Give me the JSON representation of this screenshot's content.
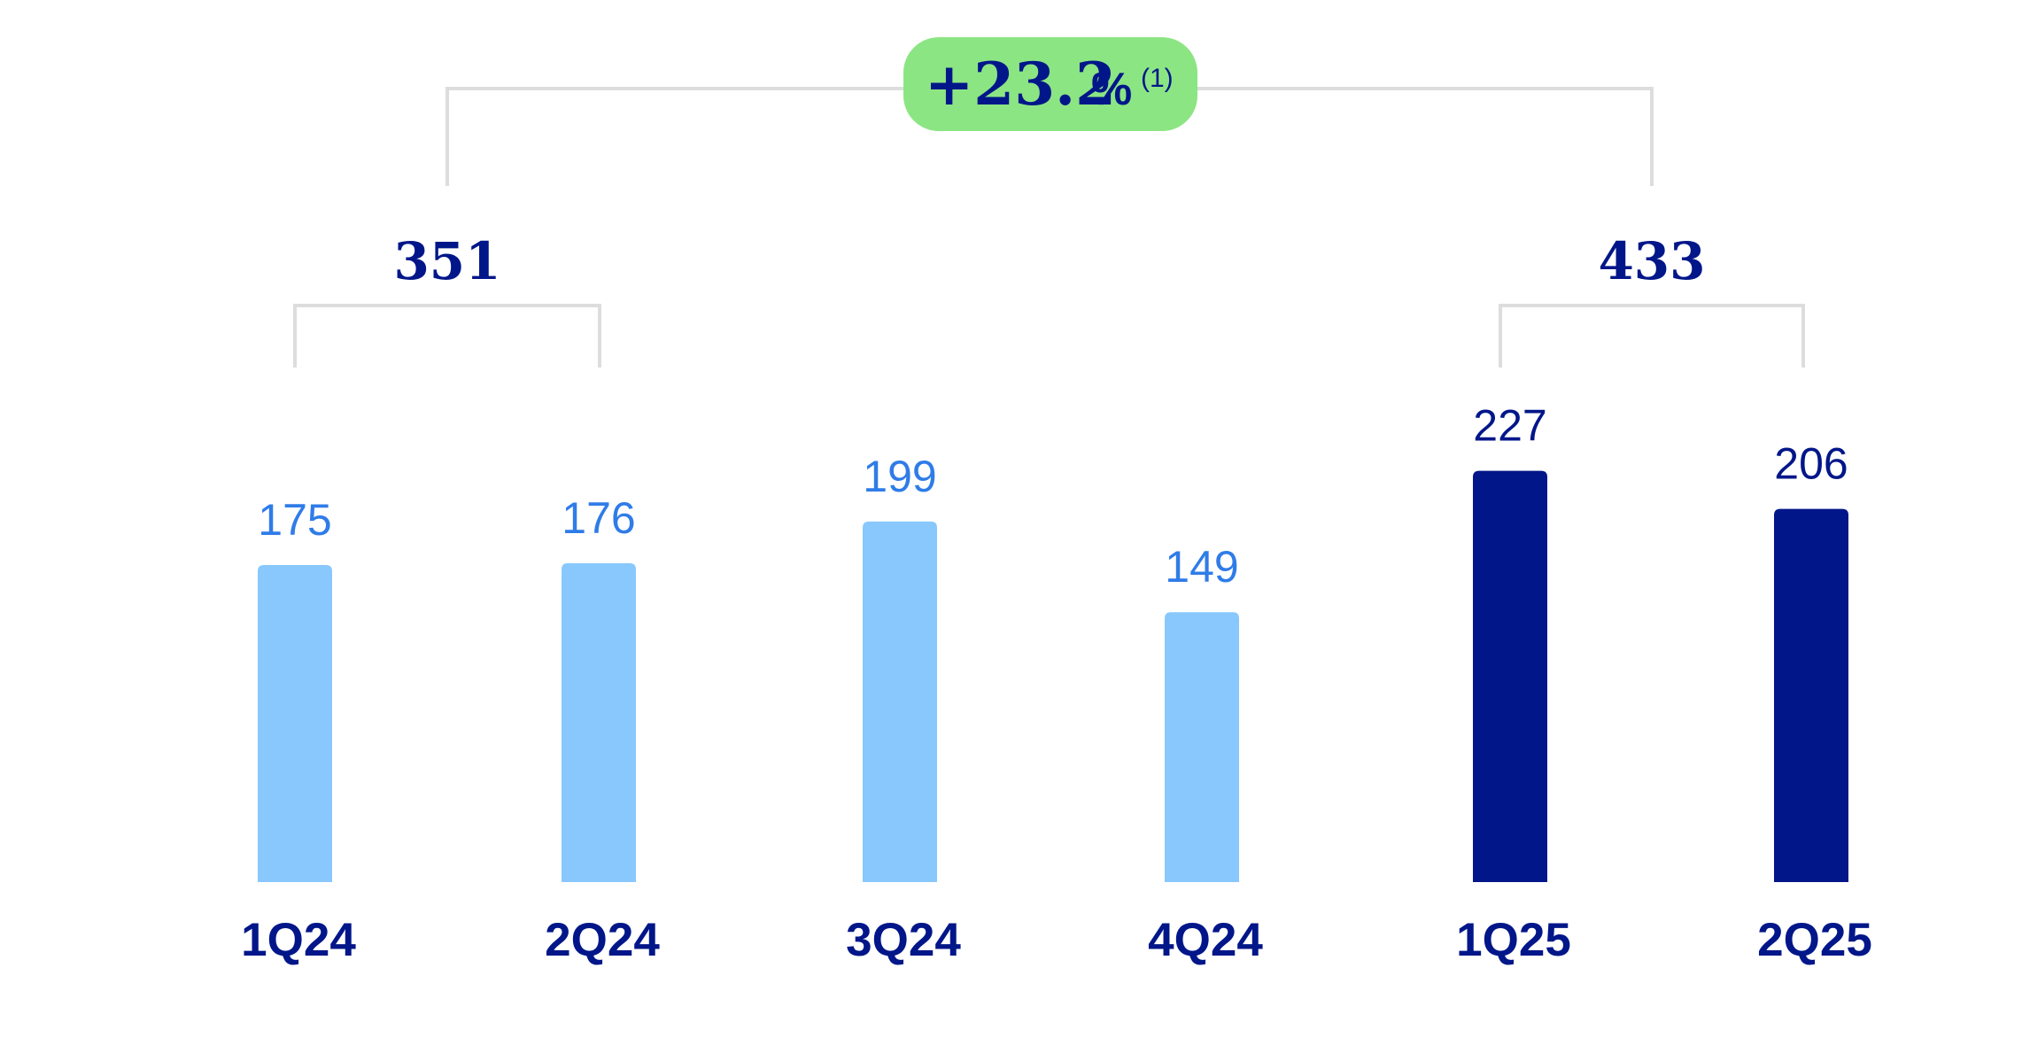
{
  "chart_data": {
    "type": "bar",
    "categories": [
      "1Q24",
      "2Q24",
      "3Q24",
      "4Q24",
      "1Q25",
      "2Q25"
    ],
    "values": [
      175,
      176,
      199,
      149,
      227,
      206
    ],
    "value_labels": [
      "175",
      "176",
      "199",
      "149",
      "227",
      "206"
    ],
    "bar_colors": [
      "#88c8fd",
      "#88c8fd",
      "#88c8fd",
      "#88c8fd",
      "#011689",
      "#011689"
    ],
    "label_colors": [
      "#2f7ce8",
      "#2f7ce8",
      "#2f7ce8",
      "#2f7ce8",
      "#011689",
      "#011689"
    ],
    "groups": [
      {
        "total": "351",
        "members": [
          "1Q24",
          "2Q24"
        ]
      },
      {
        "total": "433",
        "members": [
          "1Q25",
          "2Q25"
        ]
      }
    ],
    "growth": {
      "sign_value": "+23.2",
      "unit": "%",
      "note": "(1)"
    },
    "ylim": [
      0,
      245
    ],
    "grid": false,
    "title": "",
    "xlabel": "",
    "ylabel": ""
  },
  "colors": {
    "bracket": "#dddddd",
    "badge_bg": "#8ce583",
    "dark": "#011689",
    "light_bar": "#88c8fd",
    "light_label": "#2f7ce8"
  }
}
